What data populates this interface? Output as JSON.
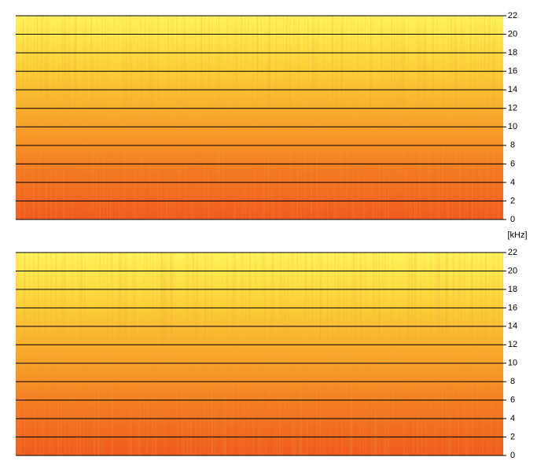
{
  "chart_data": [
    {
      "type": "spectrogram",
      "y_label": "[kHz]",
      "ylim": [
        0,
        22
      ],
      "yticks": [
        0,
        2,
        4,
        6,
        8,
        10,
        12,
        14,
        16,
        18,
        20,
        22
      ],
      "grid": true
    },
    {
      "type": "spectrogram",
      "ylim": [
        0,
        22
      ],
      "yticks": [
        0,
        2,
        4,
        6,
        8,
        10,
        12,
        14,
        16,
        18,
        20,
        22
      ],
      "grid": true
    }
  ]
}
